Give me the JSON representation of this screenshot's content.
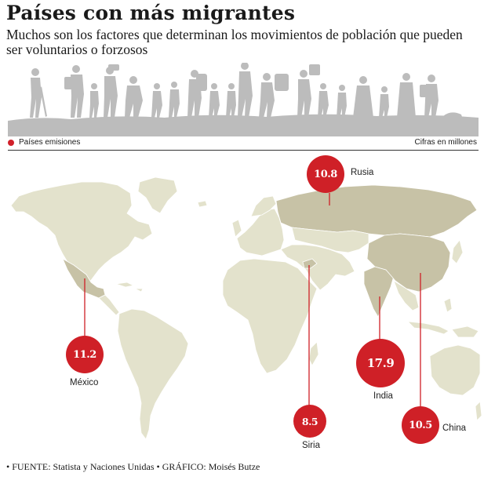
{
  "title": "Países con más migrantes",
  "subtitle": "Muchos son los factores que determinan los movimientos de población que pueden ser voluntarios o forzosos",
  "legend": {
    "label": "Países emisiones",
    "color": "#d1202a"
  },
  "units": "Cifras en millones",
  "colors": {
    "land": "#e3e2cc",
    "highlight": "#c7c2a6",
    "bubble": "#cf2027",
    "silhouette": "#bcbcbc"
  },
  "countries": [
    {
      "name": "México",
      "value": "11.2"
    },
    {
      "name": "Rusia",
      "value": "10.8"
    },
    {
      "name": "Siria",
      "value": "8.5"
    },
    {
      "name": "India",
      "value": "17.9"
    },
    {
      "name": "China",
      "value": "10.5"
    }
  ],
  "footer": "• FUENTE: Statista y Naciones Unidas • GRÁFICO: Moisés Butze"
}
